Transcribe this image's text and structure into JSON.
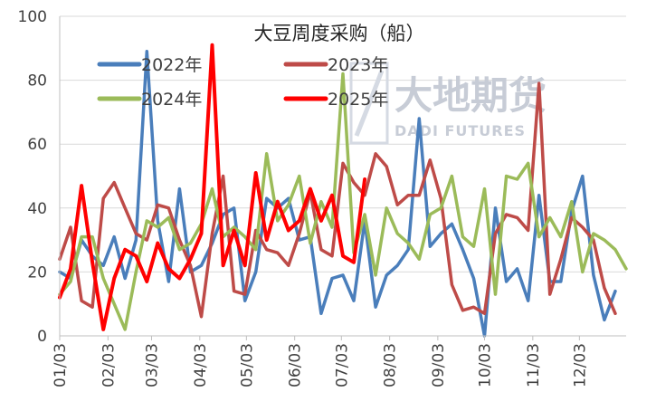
{
  "watermark": {
    "name": "大地期货",
    "subtitle": "DADI FUTURES"
  },
  "chart_data": {
    "type": "line",
    "title": "大豆周度采购（船）",
    "xlabel": "",
    "ylabel": "",
    "ylim": [
      0,
      100
    ],
    "yticks": [
      0,
      20,
      40,
      60,
      80,
      100
    ],
    "x_tick_labels": [
      "01/03",
      "02/03",
      "03/03",
      "04/03",
      "05/03",
      "06/03",
      "07/03",
      "08/03",
      "09/03",
      "10/03",
      "11/03",
      "12/03"
    ],
    "grid": "horizontal",
    "legend": "top, two columns",
    "series": [
      {
        "name": "2022年",
        "color": "#4a7ebb",
        "values": [
          20,
          18,
          30,
          25,
          22,
          31,
          18,
          30,
          89,
          36,
          17,
          46,
          20,
          22,
          29,
          38,
          40,
          11,
          20,
          43,
          40,
          43,
          30,
          31,
          7,
          18,
          19,
          11,
          36,
          9,
          19,
          22,
          27,
          68,
          28,
          32,
          35,
          27,
          18,
          0,
          40,
          17,
          21,
          11,
          44,
          17,
          17,
          39,
          50,
          19,
          5,
          14
        ]
      },
      {
        "name": "2023年",
        "color": "#be4b48",
        "values": [
          24,
          34,
          11,
          9,
          43,
          48,
          40,
          32,
          30,
          41,
          40,
          30,
          22,
          6,
          32,
          50,
          14,
          13,
          33,
          27,
          26,
          22,
          32,
          45,
          27,
          25,
          54,
          48,
          44,
          57,
          53,
          41,
          44,
          44,
          55,
          43,
          16,
          8,
          9,
          7,
          32,
          38,
          37,
          33,
          79,
          13,
          24,
          37,
          34,
          30,
          15,
          7
        ]
      },
      {
        "name": "2024年",
        "color": "#9bbb59",
        "values": [
          13,
          17,
          31,
          31,
          18,
          10,
          2,
          20,
          36,
          34,
          37,
          27,
          29,
          35,
          46,
          31,
          34,
          31,
          27,
          57,
          36,
          41,
          50,
          29,
          42,
          34,
          82,
          26,
          38,
          19,
          40,
          32,
          29,
          24,
          38,
          40,
          50,
          31,
          28,
          46,
          13,
          50,
          49,
          54,
          31,
          37,
          31,
          42,
          20,
          32,
          30,
          27,
          21
        ]
      },
      {
        "name": "2025年",
        "color": "#ff0000",
        "values": [
          12,
          21,
          47,
          23,
          2,
          18,
          27,
          25,
          17,
          29,
          21,
          18,
          24,
          32,
          91,
          22,
          33,
          22,
          51,
          30,
          42,
          33,
          36,
          46,
          36,
          44,
          25,
          23,
          49
        ]
      }
    ]
  }
}
